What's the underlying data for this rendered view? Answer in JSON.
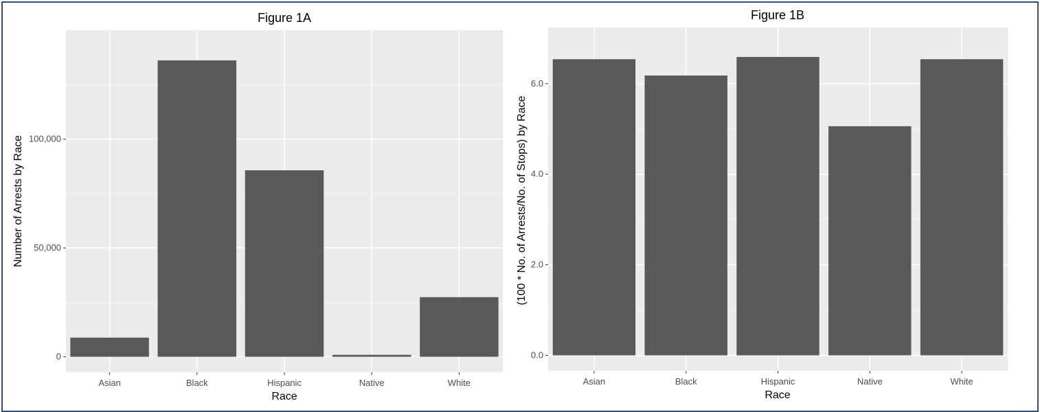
{
  "chart_data": [
    {
      "type": "bar",
      "title": "Figure 1A",
      "xlabel": "Race",
      "ylabel": "Number of Arrests by Race",
      "categories": [
        "Asian",
        "Black",
        "Hispanic",
        "Native",
        "White"
      ],
      "values": [
        8800,
        136200,
        85700,
        900,
        27400
      ],
      "ylim": [
        0,
        143000
      ],
      "yticks": [
        0,
        50000,
        100000
      ],
      "ytick_labels": [
        "0",
        "50,000",
        "100,000"
      ],
      "grid": true,
      "panel_color": "#ebebeb",
      "bar_color": "#595959"
    },
    {
      "type": "bar",
      "title": "Figure 1B",
      "xlabel": "Race",
      "ylabel": "(100 * No. of Arrests/No. of Stops) by Race",
      "categories": [
        "Asian",
        "Black",
        "Hispanic",
        "Native",
        "White"
      ],
      "values": [
        6.54,
        6.18,
        6.59,
        5.06,
        6.54
      ],
      "ylim": [
        0,
        6.9
      ],
      "yticks": [
        0,
        2,
        4,
        6
      ],
      "ytick_labels": [
        "0.0",
        "2.0",
        "4.0",
        "6.0"
      ],
      "grid": true,
      "panel_color": "#ebebeb",
      "bar_color": "#595959"
    }
  ]
}
